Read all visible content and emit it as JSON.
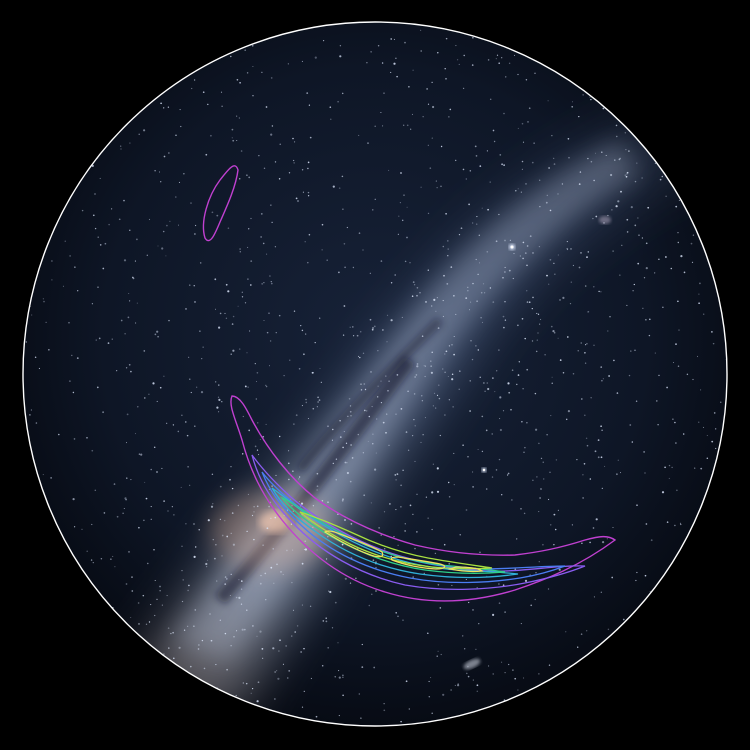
{
  "scene": {
    "background_color": "#000000",
    "sky_color": "#0b1220",
    "milky_way_color": "#a9b9d6",
    "horizon_ring_color": "#ffffff",
    "galactic_core_color": "#d9a58a"
  },
  "probability_contours": {
    "colors": [
      "#c040d0",
      "#8a5cf0",
      "#4a7df2",
      "#2fb0d8",
      "#2fd08a",
      "#a8e040",
      "#f0e060"
    ],
    "regions": [
      "secondary-lobe",
      "primary-arc"
    ]
  },
  "bright_objects": [
    "bright-star",
    "bright-star",
    "large-magellanic-cloud",
    "small-magellanic-cloud"
  ]
}
